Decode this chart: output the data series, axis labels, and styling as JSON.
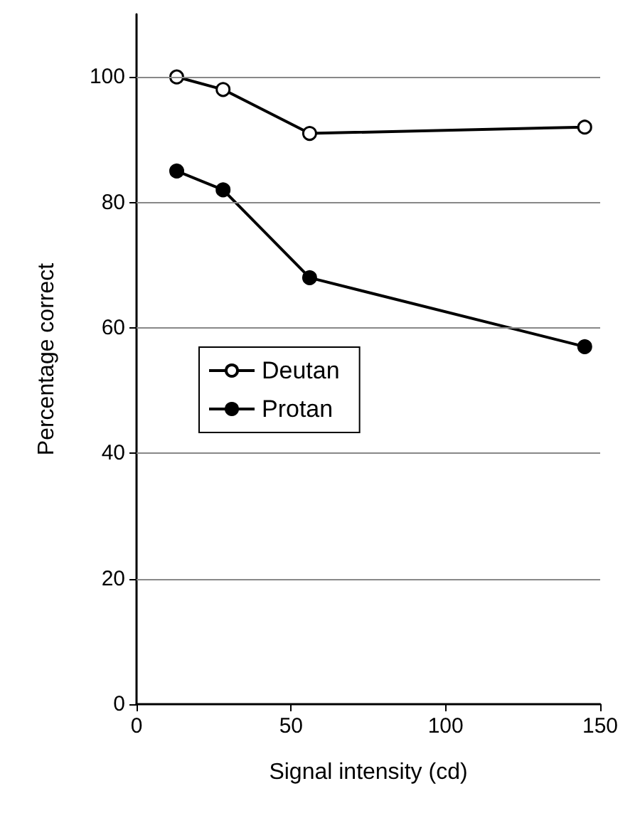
{
  "chart_data": {
    "type": "line",
    "xlabel": "Signal intensity (cd)",
    "ylabel": "Percentage correct",
    "x": [
      13,
      28,
      56,
      145
    ],
    "series": [
      {
        "name": "Deutan",
        "color": "#000000",
        "marker": "open circle",
        "values": [
          100,
          98,
          91,
          92
        ]
      },
      {
        "name": "Protan",
        "color": "#000000",
        "marker": "circle",
        "values": [
          85,
          82,
          68,
          57
        ]
      }
    ],
    "xlim": [
      0,
      150
    ],
    "xticks": [
      0,
      50,
      100,
      150
    ],
    "ylim": [
      0,
      110
    ],
    "yticks": [
      0,
      20,
      40,
      60,
      80,
      100
    ],
    "grid": "y",
    "legend": "left",
    "line_style": "solid"
  }
}
